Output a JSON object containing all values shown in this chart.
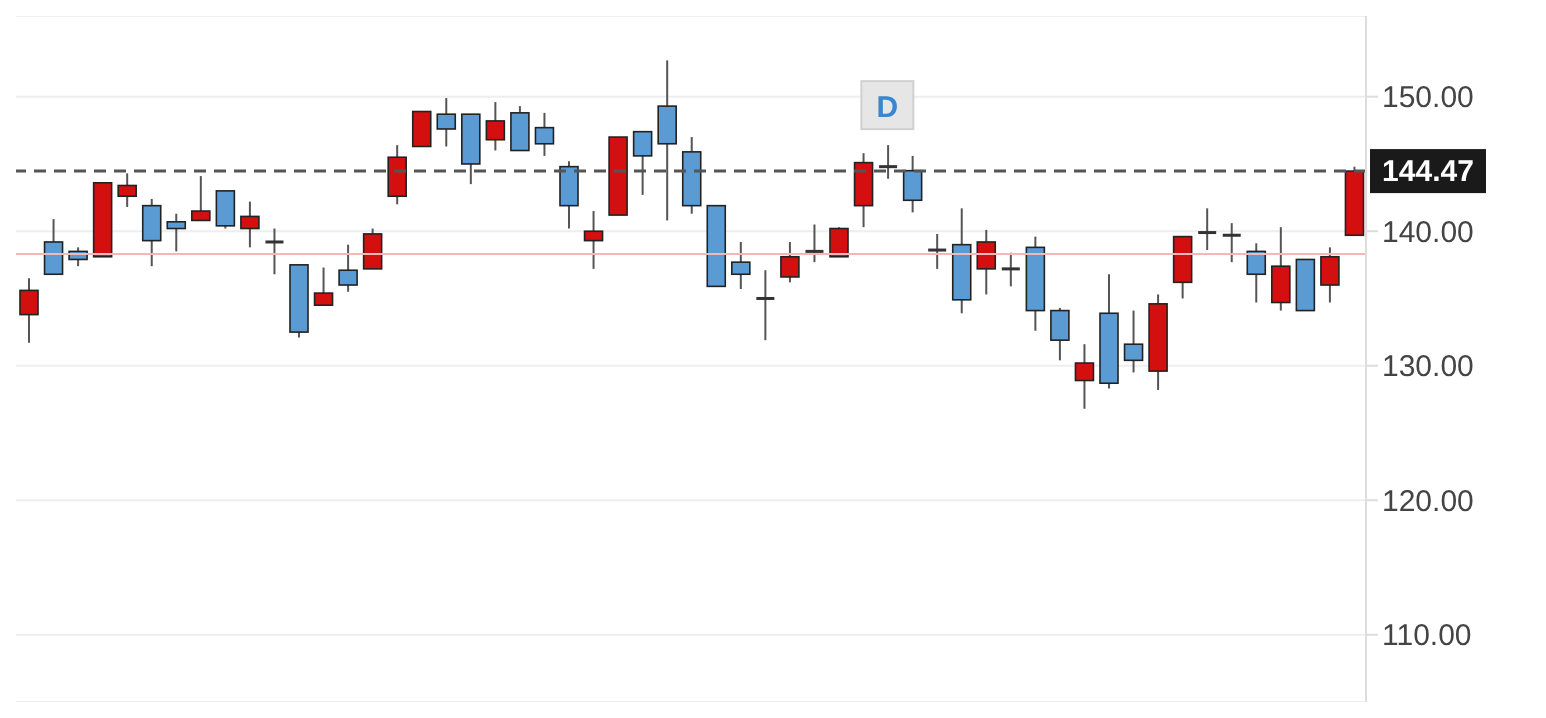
{
  "chart_data": {
    "type": "candlestick",
    "categories": [
      null,
      null,
      null,
      null,
      null,
      null,
      null,
      null,
      null,
      null,
      null,
      null,
      null,
      null,
      null,
      null,
      null,
      null,
      null,
      null,
      null,
      null,
      null,
      null,
      null,
      null,
      null,
      null,
      null,
      null,
      null,
      null,
      null,
      null,
      null,
      null,
      null,
      null,
      null,
      null,
      null,
      null,
      null,
      null,
      null,
      null,
      null,
      null,
      null,
      null,
      null,
      null,
      null,
      null,
      null
    ],
    "ohlc": [
      [
        133.8,
        136.5,
        131.7,
        135.6
      ],
      [
        139.2,
        140.9,
        136.8,
        136.8
      ],
      [
        138.5,
        138.8,
        137.4,
        137.9
      ],
      [
        138.1,
        143.6,
        138.1,
        143.6
      ],
      [
        142.6,
        144.3,
        141.8,
        143.4
      ],
      [
        141.9,
        142.4,
        137.4,
        139.3
      ],
      [
        140.7,
        141.3,
        138.5,
        140.2
      ],
      [
        140.8,
        144.1,
        140.8,
        141.5
      ],
      [
        143.0,
        143.0,
        140.2,
        140.4
      ],
      [
        140.2,
        142.2,
        138.8,
        141.1
      ],
      [
        139.2,
        140.2,
        136.8,
        139.2
      ],
      [
        137.5,
        137.5,
        132.1,
        132.5
      ],
      [
        134.5,
        137.3,
        134.5,
        135.4
      ],
      [
        137.1,
        139.0,
        135.5,
        136.0
      ],
      [
        137.2,
        140.2,
        137.2,
        139.8
      ],
      [
        142.6,
        146.4,
        142.0,
        145.5
      ],
      [
        146.3,
        148.9,
        146.3,
        148.9
      ],
      [
        148.7,
        149.9,
        146.3,
        147.6
      ],
      [
        148.7,
        148.7,
        143.5,
        145.0
      ],
      [
        146.8,
        149.6,
        146.0,
        148.2
      ],
      [
        148.8,
        149.3,
        146.0,
        146.0
      ],
      [
        147.7,
        148.8,
        145.6,
        146.5
      ],
      [
        144.8,
        145.2,
        140.2,
        141.9
      ],
      [
        139.3,
        141.5,
        137.2,
        140.0
      ],
      [
        141.2,
        147.0,
        141.2,
        147.0
      ],
      [
        147.4,
        147.4,
        142.7,
        145.6
      ],
      [
        149.3,
        152.7,
        140.8,
        146.5
      ],
      [
        145.9,
        147.0,
        141.3,
        141.9
      ],
      [
        141.9,
        141.9,
        135.9,
        135.9
      ],
      [
        137.7,
        139.2,
        135.7,
        136.8
      ],
      [
        135.0,
        137.1,
        131.9,
        135.0
      ],
      [
        136.6,
        139.2,
        136.2,
        138.1
      ],
      [
        138.5,
        140.5,
        137.7,
        138.5
      ],
      [
        138.1,
        140.3,
        138.1,
        140.2
      ],
      [
        141.9,
        145.8,
        140.3,
        145.1
      ],
      [
        144.8,
        146.4,
        143.9,
        144.8
      ],
      [
        144.5,
        145.6,
        141.4,
        142.3
      ],
      [
        138.6,
        139.8,
        137.2,
        138.6
      ],
      [
        139.0,
        141.7,
        133.9,
        134.9
      ],
      [
        137.2,
        140.1,
        135.3,
        139.2
      ],
      [
        137.2,
        138.4,
        135.9,
        137.2
      ],
      [
        138.8,
        139.6,
        132.6,
        134.1
      ],
      [
        134.1,
        134.3,
        130.4,
        131.9
      ],
      [
        128.9,
        131.6,
        126.8,
        130.2
      ],
      [
        133.9,
        136.8,
        128.3,
        128.7
      ],
      [
        131.6,
        134.1,
        129.5,
        130.4
      ],
      [
        129.6,
        135.3,
        128.2,
        134.6
      ],
      [
        136.2,
        139.6,
        135.0,
        139.6
      ],
      [
        139.9,
        141.7,
        138.6,
        139.9
      ],
      [
        139.7,
        140.6,
        137.7,
        139.7
      ],
      [
        138.5,
        139.1,
        134.7,
        136.8
      ],
      [
        134.7,
        140.3,
        134.1,
        137.4
      ],
      [
        137.9,
        137.9,
        134.1,
        134.1
      ],
      [
        136.0,
        138.8,
        134.7,
        138.1
      ],
      [
        139.7,
        144.8,
        139.7,
        144.47
      ]
    ],
    "colors": [
      "#d40f0f",
      "#5a9bd4",
      "#5a9bd4",
      "#d40f0f",
      "#d40f0f",
      "#5a9bd4",
      "#5a9bd4",
      "#d40f0f",
      "#5a9bd4",
      "#d40f0f",
      "#333333",
      "#5a9bd4",
      "#d40f0f",
      "#5a9bd4",
      "#d40f0f",
      "#d40f0f",
      "#d40f0f",
      "#5a9bd4",
      "#5a9bd4",
      "#d40f0f",
      "#5a9bd4",
      "#5a9bd4",
      "#5a9bd4",
      "#d40f0f",
      "#d40f0f",
      "#5a9bd4",
      "#5a9bd4",
      "#5a9bd4",
      "#5a9bd4",
      "#5a9bd4",
      "#333333",
      "#d40f0f",
      "#333333",
      "#d40f0f",
      "#d40f0f",
      "#333333",
      "#5a9bd4",
      "#333333",
      "#5a9bd4",
      "#d40f0f",
      "#333333",
      "#5a9bd4",
      "#5a9bd4",
      "#d40f0f",
      "#5a9bd4",
      "#5a9bd4",
      "#d40f0f",
      "#d40f0f",
      "#333333",
      "#333333",
      "#5a9bd4",
      "#d40f0f",
      "#5a9bd4",
      "#d40f0f",
      "#d40f0f"
    ],
    "ylim": [
      105,
      156
    ],
    "yticks": [
      {
        "value": 110,
        "label": "110.00"
      },
      {
        "value": 120,
        "label": "120.00"
      },
      {
        "value": 130,
        "label": "130.00"
      },
      {
        "value": 140,
        "label": "140.00"
      },
      {
        "value": 150,
        "label": "150.00"
      }
    ],
    "tick_labels": "y",
    "grid": "y",
    "ref_lines": [
      {
        "axis": "y",
        "value": 144.47,
        "label": "144.47",
        "color": "#555555",
        "line_style": "dashed"
      },
      {
        "axis": "y",
        "value": 138.3,
        "color": "#f2b8b8",
        "line_style": "solid"
      }
    ],
    "annotations": [
      "D"
    ]
  }
}
